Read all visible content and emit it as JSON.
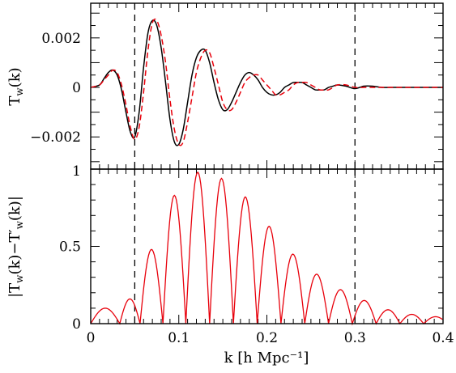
{
  "chart_data": [
    {
      "panel": "top",
      "type": "line",
      "ylabel_main": "T",
      "ylabel_sub": "w",
      "ylabel_tail": "(k)",
      "xlim": [
        0,
        0.4
      ],
      "ylim": [
        -0.0033,
        0.0034
      ],
      "yticks": [
        {
          "value": 0.002,
          "label": "0.002"
        },
        {
          "value": 0,
          "label": "0"
        },
        {
          "value": -0.002,
          "label": "−0.002"
        }
      ],
      "vlines": [
        0.05,
        0.3
      ],
      "series": [
        {
          "color": "#000000",
          "dash": "solid",
          "x": [
            0.0,
            0.01,
            0.015,
            0.02,
            0.025,
            0.03,
            0.035,
            0.04,
            0.045,
            0.05,
            0.055,
            0.06,
            0.065,
            0.07,
            0.075,
            0.08,
            0.085,
            0.09,
            0.095,
            0.1,
            0.105,
            0.11,
            0.115,
            0.12,
            0.125,
            0.13,
            0.135,
            0.14,
            0.145,
            0.15,
            0.155,
            0.16,
            0.165,
            0.17,
            0.175,
            0.18,
            0.185,
            0.19,
            0.195,
            0.2,
            0.205,
            0.21,
            0.215,
            0.22,
            0.225,
            0.23,
            0.235,
            0.24,
            0.245,
            0.25,
            0.255,
            0.26,
            0.265,
            0.27,
            0.275,
            0.28,
            0.29,
            0.3,
            0.31,
            0.32,
            0.33,
            0.34,
            0.35,
            0.36,
            0.37,
            0.38,
            0.39,
            0.4
          ],
          "y": [
            0.0,
            0.0001,
            0.00035,
            0.0006,
            0.0007,
            0.0005,
            -0.0001,
            -0.001,
            -0.0018,
            -0.002,
            -0.001,
            0.0008,
            0.0022,
            0.0027,
            0.0025,
            0.0016,
            0.0002,
            -0.0013,
            -0.0022,
            -0.0023,
            -0.0017,
            -0.0006,
            0.0005,
            0.0012,
            0.0015,
            0.0015,
            0.001,
            0.0002,
            -0.0005,
            -0.0009,
            -0.0009,
            -0.0006,
            -0.0002,
            0.0002,
            0.0005,
            0.0006,
            0.0005,
            0.0003,
            0.0,
            -0.0002,
            -0.0003,
            -0.0003,
            -0.0002,
            0.0,
            0.0001,
            0.0002,
            0.0002,
            0.0002,
            0.0001,
            0.0,
            -0.0001,
            -0.0001,
            -0.0001,
            0.0,
            5e-05,
            0.0001,
            5e-05,
            -5e-05,
            5e-05,
            5e-05,
            0.0,
            0.0,
            0.0,
            0.0,
            0.0,
            0.0,
            0.0,
            0.0
          ]
        },
        {
          "color": "#e8000b",
          "dash": "dashed",
          "x": [
            0.0,
            0.01,
            0.015,
            0.02,
            0.025,
            0.03,
            0.035,
            0.04,
            0.045,
            0.05,
            0.055,
            0.06,
            0.065,
            0.07,
            0.075,
            0.08,
            0.085,
            0.09,
            0.095,
            0.1,
            0.105,
            0.11,
            0.115,
            0.12,
            0.125,
            0.13,
            0.135,
            0.14,
            0.145,
            0.15,
            0.155,
            0.16,
            0.165,
            0.17,
            0.175,
            0.18,
            0.185,
            0.19,
            0.195,
            0.2,
            0.205,
            0.21,
            0.215,
            0.22,
            0.225,
            0.23,
            0.235,
            0.24,
            0.245,
            0.25,
            0.255,
            0.26,
            0.265,
            0.27,
            0.275,
            0.28,
            0.29,
            0.3,
            0.31,
            0.32,
            0.33,
            0.34,
            0.35,
            0.36,
            0.37,
            0.38,
            0.39,
            0.4
          ],
          "y": [
            0.0,
            0.0001,
            0.0003,
            0.0005,
            0.0007,
            0.0006,
            0.0001,
            -0.0007,
            -0.0016,
            -0.0021,
            -0.0016,
            -0.0002,
            0.0015,
            0.0026,
            0.0027,
            0.0021,
            0.001,
            -0.0005,
            -0.0017,
            -0.0023,
            -0.0022,
            -0.0014,
            -0.0004,
            0.0006,
            0.0012,
            0.0015,
            0.0014,
            0.0008,
            0.0001,
            -0.0006,
            -0.0009,
            -0.0009,
            -0.0006,
            -0.0002,
            0.0002,
            0.0004,
            0.0005,
            0.0005,
            0.0003,
            0.0001,
            -0.0001,
            -0.0003,
            -0.0003,
            -0.0002,
            -0.0001,
            0.0001,
            0.0002,
            0.0002,
            0.0002,
            0.0001,
            0.0,
            -0.0001,
            -0.0001,
            -0.0001,
            0.0,
            0.0001,
            0.0001,
            0.0,
            0.0,
            0.0,
            0.0,
            0.0,
            0.0,
            0.0,
            0.0,
            0.0,
            0.0,
            0.0
          ]
        }
      ]
    },
    {
      "panel": "bottom",
      "type": "line",
      "ylabel_a": "|T",
      "ylabel_b": "(k)−T′",
      "ylabel_c": "(k)|",
      "ylabel_sub": "w",
      "xlabel": "k [h Mpc⁻¹]",
      "xlim": [
        0,
        0.4
      ],
      "ylim": [
        0,
        1.0
      ],
      "xticks": [
        {
          "value": 0,
          "label": "0"
        },
        {
          "value": 0.1,
          "label": "0.1"
        },
        {
          "value": 0.2,
          "label": "0.2"
        },
        {
          "value": 0.3,
          "label": "0.3"
        },
        {
          "value": 0.4,
          "label": "0.4"
        }
      ],
      "yticks": [
        {
          "value": 0,
          "label": "0"
        },
        {
          "value": 0.5,
          "label": "0.5"
        },
        {
          "value": 1,
          "label": "1"
        }
      ],
      "vlines": [
        0.05,
        0.3
      ],
      "lobes": {
        "color": "#e8000b",
        "zeros": [
          0.0,
          0.033,
          0.056,
          0.082,
          0.108,
          0.135,
          0.162,
          0.189,
          0.216,
          0.243,
          0.27,
          0.297,
          0.324,
          0.351,
          0.378,
          0.405
        ],
        "peaks": [
          0.1,
          0.16,
          0.48,
          0.83,
          0.98,
          0.94,
          0.82,
          0.63,
          0.45,
          0.32,
          0.22,
          0.15,
          0.09,
          0.06,
          0.045
        ],
        "peak_x": [
          0.02,
          0.045,
          0.07,
          0.095,
          0.122,
          0.149,
          0.176,
          0.203,
          0.23,
          0.257,
          0.284,
          0.311,
          0.338,
          0.364,
          0.39
        ]
      }
    }
  ]
}
